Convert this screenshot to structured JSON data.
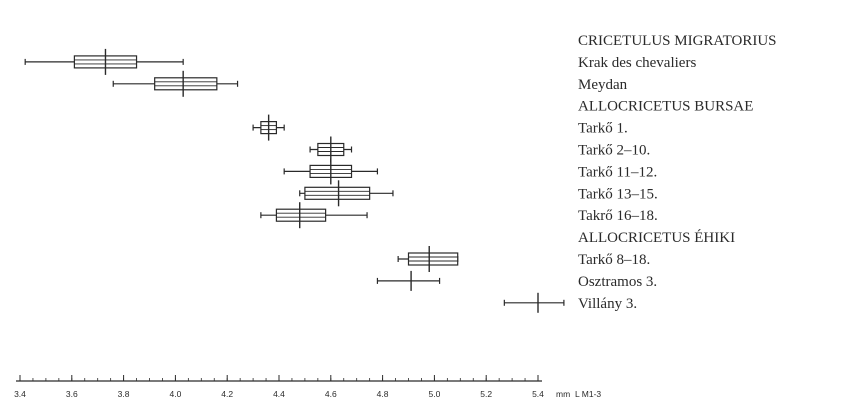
{
  "chart_data": {
    "type": "box",
    "x_axis": {
      "range": [
        3.4,
        5.6
      ],
      "ticks": [
        3.4,
        3.6,
        3.8,
        4.0,
        4.2,
        4.4,
        4.6,
        4.8,
        5.0,
        5.2,
        5.4
      ],
      "tick_labels": [
        "3.4",
        "3.6",
        "3.8",
        "4.0",
        "4.2",
        "4.4",
        "4.6",
        "4.8",
        "5.0",
        "5.2",
        "5.4"
      ],
      "unit_label": "mm",
      "measure_label": "L M1-3"
    },
    "rows": [
      {
        "label": "CRICETULUS MIGRATORIUS",
        "heading": true
      },
      {
        "label": "Krak des chevaliers",
        "min": 3.42,
        "q1": 3.61,
        "mean": 3.73,
        "q3": 3.85,
        "max": 4.03
      },
      {
        "label": "Meydan",
        "min": 3.76,
        "q1": 3.92,
        "mean": 4.03,
        "q3": 4.16,
        "max": 4.24
      },
      {
        "label": "ALLOCRICETUS BURSAE",
        "heading": true
      },
      {
        "label": "Tarkő 1.",
        "min": 4.3,
        "q1": 4.33,
        "mean": 4.36,
        "q3": 4.39,
        "max": 4.42
      },
      {
        "label": "Tarkő 2–10.",
        "min": 4.52,
        "q1": 4.55,
        "mean": 4.6,
        "q3": 4.65,
        "max": 4.68
      },
      {
        "label": "Tarkő 11–12.",
        "min": 4.42,
        "q1": 4.52,
        "mean": 4.6,
        "q3": 4.68,
        "max": 4.78
      },
      {
        "label": "Tarkő 13–15.",
        "min": 4.48,
        "q1": 4.5,
        "mean": 4.63,
        "q3": 4.75,
        "max": 4.84
      },
      {
        "label": "Takrő 16–18.",
        "min": 4.33,
        "q1": 4.39,
        "mean": 4.48,
        "q3": 4.58,
        "max": 4.74
      },
      {
        "label": "ALLOCRICETUS ÉHIKI",
        "heading": true
      },
      {
        "label": "Tarkő 8–18.",
        "min": 4.86,
        "q1": 4.9,
        "mean": 4.98,
        "q3": 5.09,
        "max": 5.09
      },
      {
        "label": "Osztramos 3.",
        "min": 4.78,
        "mean": 4.91,
        "max": 5.02
      },
      {
        "label": "Villány 3.",
        "min": 5.27,
        "mean": 5.4,
        "max": 5.5
      }
    ],
    "grid": false,
    "legend": "none"
  }
}
